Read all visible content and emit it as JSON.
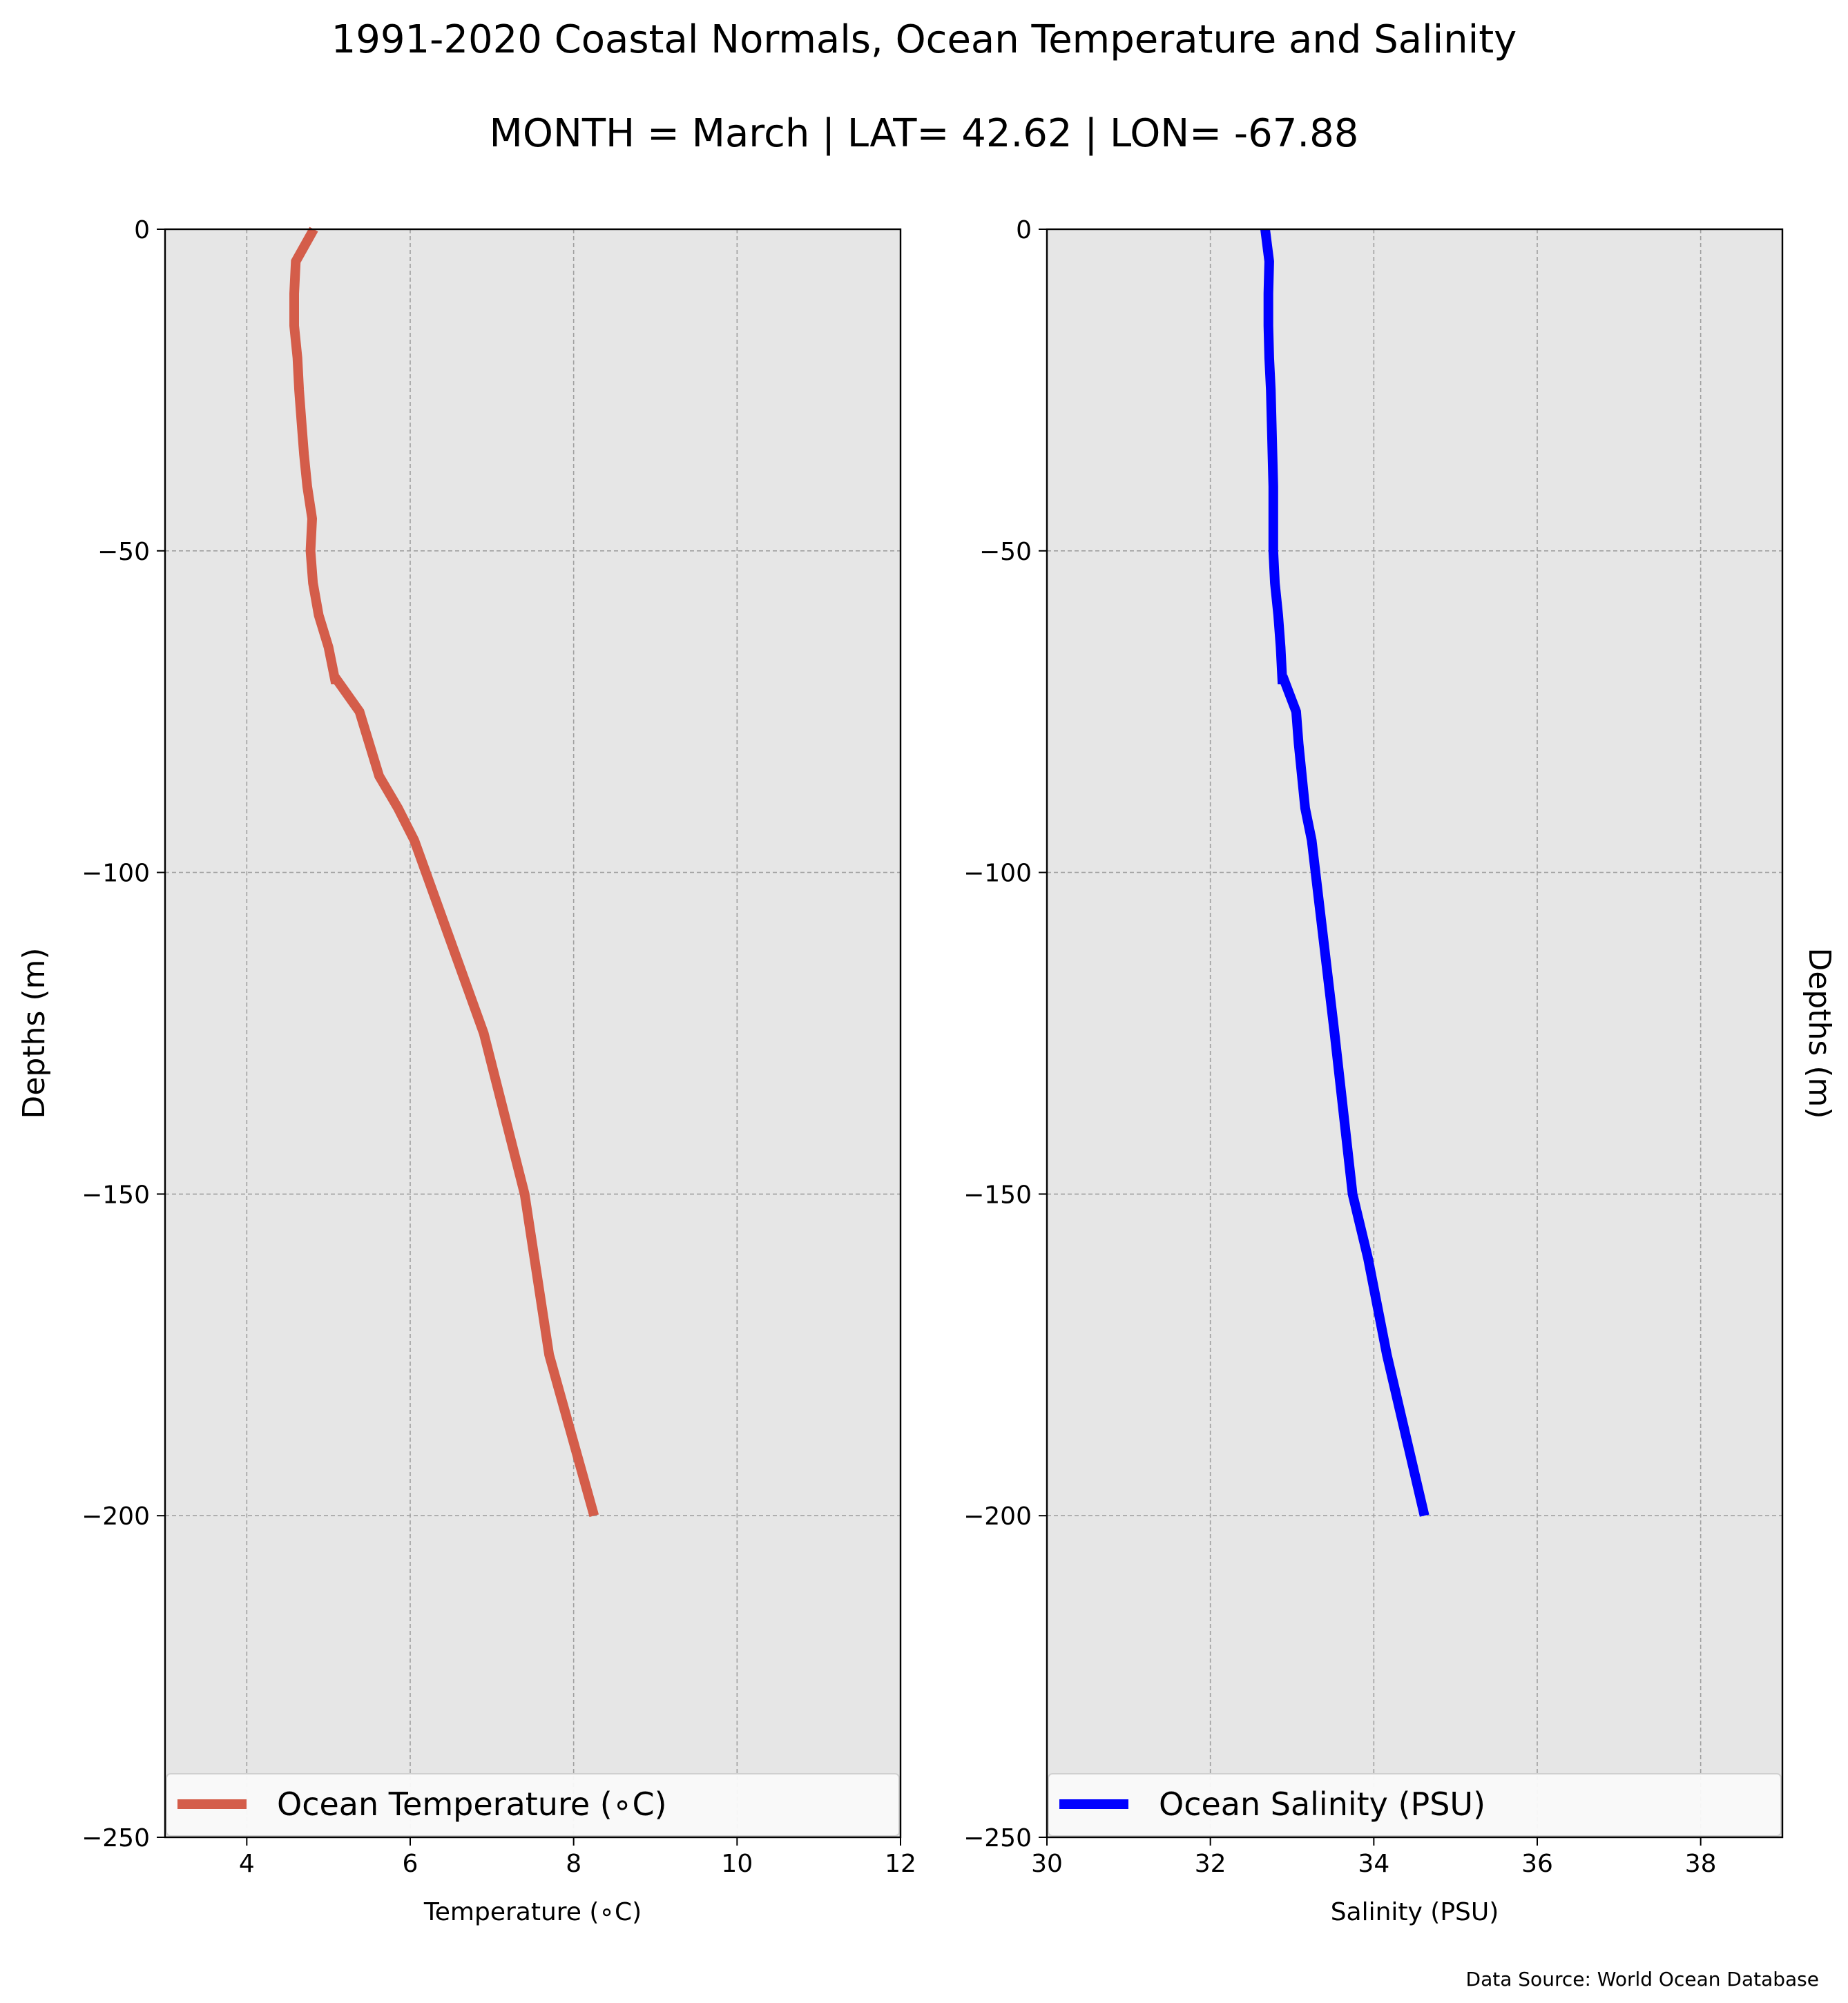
{
  "title_line1": "1991-2020 Coastal Normals, Ocean Temperature and Salinity",
  "title_line2": "MONTH = March | LAT= 42.62 | LON= -67.88",
  "source_note": "Data Source: World Ocean Database",
  "chart_data": [
    {
      "type": "line",
      "xlabel": "Temperature ($^\\circ$C)",
      "xlabel_display": "Temperature (∘C)",
      "ylabel": "Depths (m)",
      "ylabel_side": "left",
      "xlim": [
        3,
        12
      ],
      "ylim": [
        -250,
        0
      ],
      "xticks": [
        4,
        6,
        8,
        10,
        12
      ],
      "xtick_labels": [
        "4",
        "6",
        "8",
        "10",
        "12"
      ],
      "yticks": [
        0,
        -50,
        -100,
        -150,
        -200,
        -250
      ],
      "ytick_labels": [
        "0",
        "−50",
        "−100",
        "−150",
        "−200",
        "−250"
      ],
      "grid": true,
      "background": "#e6e6e6",
      "legend_placement": "lower center",
      "series": [
        {
          "name": "Ocean Temperature (∘C)",
          "color": "#d45d4a",
          "x": [
            4.82,
            4.6,
            4.58,
            4.58,
            4.62,
            4.64,
            4.67,
            4.7,
            4.74,
            4.8,
            4.78,
            4.78,
            4.81,
            4.88,
            5.0,
            5.08,
            5.1,
            5.38,
            5.62,
            5.85,
            6.05,
            6.9,
            7.4,
            7.7,
            8.25
          ],
          "y": [
            0,
            -5,
            -10,
            -15,
            -20,
            -25,
            -30,
            -35,
            -40,
            -45,
            -50,
            -50,
            -55,
            -60,
            -65,
            -70,
            -70,
            -75,
            -85,
            -90,
            -95,
            -125,
            -150,
            -175,
            -200
          ]
        }
      ]
    },
    {
      "type": "line",
      "xlabel": "Salinity (PSU)",
      "ylabel": "Depths (m)",
      "ylabel_side": "right",
      "xlim": [
        30,
        39
      ],
      "ylim": [
        -250,
        0
      ],
      "xticks": [
        30,
        32,
        34,
        36,
        38
      ],
      "xtick_labels": [
        "30",
        "32",
        "34",
        "36",
        "38"
      ],
      "yticks": [
        0,
        -50,
        -100,
        -150,
        -200,
        -250
      ],
      "ytick_labels": [
        "0",
        "−50",
        "−100",
        "−150",
        "−200",
        "−250"
      ],
      "grid": true,
      "background": "#e6e6e6",
      "legend_placement": "lower center",
      "series": [
        {
          "name": "Ocean Salinity (PSU)",
          "color": "#0000ff",
          "x": [
            32.67,
            32.72,
            32.71,
            32.71,
            32.72,
            32.74,
            32.75,
            32.76,
            32.77,
            32.77,
            32.77,
            32.79,
            32.83,
            32.86,
            32.88,
            32.9,
            33.05,
            33.08,
            33.16,
            33.24,
            33.52,
            33.74,
            33.93,
            34.16,
            34.62
          ],
          "y": [
            0,
            -5,
            -10,
            -15,
            -20,
            -25,
            -30,
            -35,
            -40,
            -45,
            -50,
            -55,
            -60,
            -65,
            -70,
            -70,
            -75,
            -80,
            -90,
            -95,
            -125,
            -150,
            -160,
            -175,
            -200
          ]
        }
      ]
    }
  ]
}
